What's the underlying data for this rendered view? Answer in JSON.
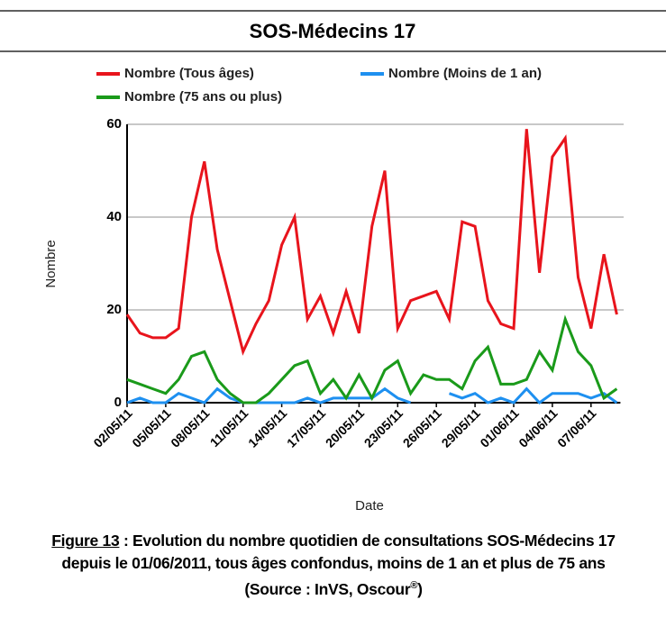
{
  "chart_data": {
    "type": "line",
    "title": "SOS-Médecins 17",
    "xlabel": "Date",
    "ylabel": "Nombre",
    "categories": [
      "02/05/11",
      null,
      null,
      "05/05/11",
      null,
      null,
      "08/05/11",
      null,
      null,
      "11/05/11",
      null,
      null,
      "14/05/11",
      null,
      null,
      "17/05/11",
      null,
      null,
      "20/05/11",
      null,
      null,
      "23/05/11",
      null,
      null,
      "26/05/11",
      null,
      null,
      "29/05/11",
      null,
      null,
      "01/06/11",
      null,
      null,
      "04/06/11",
      null,
      null,
      "07/06/11",
      null,
      null
    ],
    "series": [
      {
        "name": "Nombre (Tous âges)",
        "color": "#e8141c",
        "values": [
          19,
          15,
          14,
          14,
          16,
          40,
          52,
          33,
          22,
          11,
          17,
          22,
          34,
          40,
          18,
          23,
          15,
          24,
          15,
          38,
          50,
          16,
          22,
          23,
          24,
          18,
          39,
          38,
          22,
          17,
          16,
          59,
          28,
          53,
          57,
          27,
          16,
          32,
          19
        ]
      },
      {
        "name": "Nombre (Moins de 1 an)",
        "color": "#1e90f0",
        "values": [
          0,
          1,
          0,
          0,
          2,
          1,
          0,
          3,
          1,
          0,
          0,
          0,
          0,
          0,
          1,
          0,
          1,
          1,
          1,
          1,
          3,
          1,
          0,
          null,
          null,
          2,
          1,
          2,
          0,
          1,
          0,
          3,
          0,
          2,
          2,
          2,
          1,
          2,
          0
        ]
      },
      {
        "name": "Nombre (75 ans ou plus)",
        "color": "#1a9a1a",
        "values": [
          5,
          4,
          3,
          2,
          5,
          10,
          11,
          5,
          2,
          0,
          0,
          2,
          5,
          8,
          9,
          2,
          5,
          1,
          6,
          1,
          7,
          9,
          2,
          6,
          5,
          5,
          3,
          9,
          12,
          4,
          4,
          5,
          11,
          7,
          18,
          11,
          8,
          1,
          3
        ]
      }
    ],
    "ylim": [
      0,
      60
    ],
    "yticks": [
      0,
      20,
      40,
      60
    ],
    "grid": true
  },
  "caption": {
    "label": "Figure 13",
    "text": " : Evolution du nombre quotidien de consultations SOS-Médecins 17 depuis le 01/06/2011, tous âges confondus, moins de 1 an et plus de 75 ans (Source : InVS, Oscour",
    "mark": "®",
    "end": ")"
  }
}
